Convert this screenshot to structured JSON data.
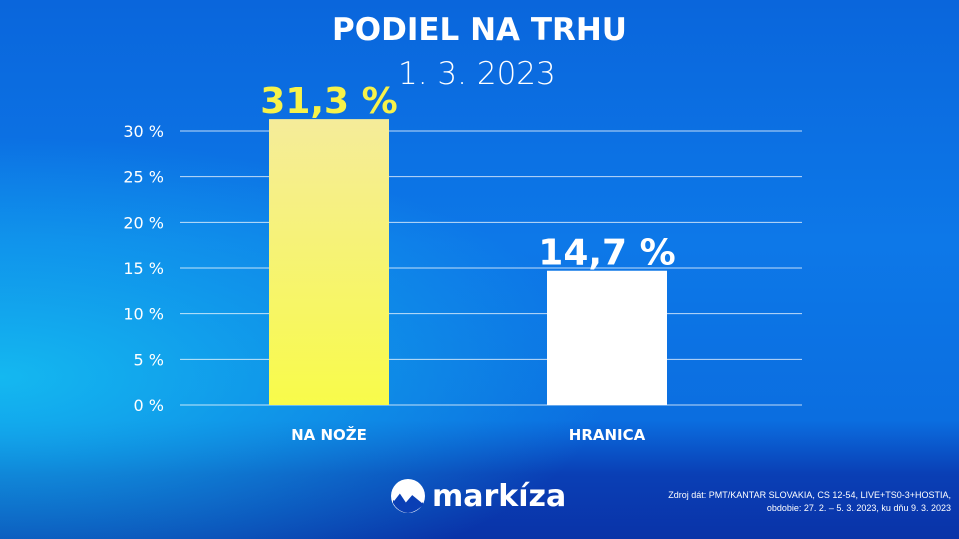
{
  "chart_data": {
    "type": "bar",
    "title": "PODIEL NA TRHU",
    "subtitle": "1. 3. 2023",
    "categories": [
      "NA NOŽE",
      "HRANICA"
    ],
    "values": [
      31.3,
      14.7
    ],
    "data_labels": [
      "31,3 %",
      "14,7 %"
    ],
    "ylim": [
      0,
      30
    ],
    "yticks": [
      0,
      5,
      10,
      15,
      20,
      25,
      30
    ],
    "ytick_labels": [
      "0 %",
      "5 %",
      "10 %",
      "15 %",
      "20 %",
      "25 %",
      "30 %"
    ],
    "grid": true,
    "colors": {
      "bar1_top": "#f5ec9a",
      "bar1_bottom": "#f8fb4a",
      "bar2": "#ffffff",
      "label1": "#f7f24a",
      "label2": "#ffffff"
    }
  },
  "logo": {
    "text": "markíza",
    "icon": "markiza-mountain-icon"
  },
  "source": {
    "line1": "Zdroj dát: PMT/KANTAR SLOVAKIA, CS 12-54, LIVE+TS0-3+HOSTIA,",
    "line2": "obdobie: 27. 2. – 5. 3. 2023, ku dňu 9. 3. 2023"
  }
}
